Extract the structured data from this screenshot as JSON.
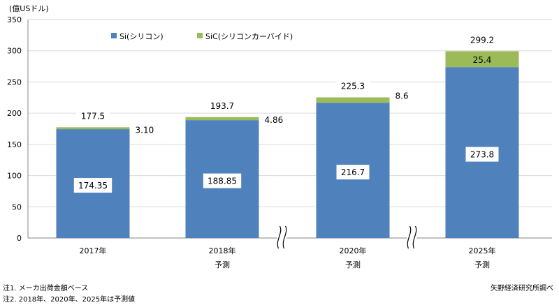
{
  "chart_data": {
    "type": "bar",
    "stacked": true,
    "unit_label": "(億USドル)",
    "y_ticks": [
      "0",
      "50",
      "100",
      "150",
      "200",
      "250",
      "300",
      "350"
    ],
    "ylim": [
      0,
      350
    ],
    "grid": true,
    "legend_position": "top-center",
    "categories": [
      "2017年",
      "2018年",
      "2020年",
      "2025年"
    ],
    "category_sublabels": [
      "",
      "予測",
      "予測",
      "予測"
    ],
    "axis_breaks_between": [
      [
        1,
        2
      ],
      [
        2,
        3
      ]
    ],
    "series": [
      {
        "name": "Si(シリコン)",
        "color": "#4f81bd",
        "values": [
          174.35,
          188.85,
          216.7,
          273.8
        ],
        "labels": [
          "174.35",
          "188.85",
          "216.7",
          "273.8"
        ]
      },
      {
        "name": "SiC(シリコンカーバイド)",
        "color": "#9bbb59",
        "values": [
          3.1,
          4.86,
          8.6,
          25.4
        ],
        "labels": [
          "3.10",
          "4.86",
          "8.6",
          "25.4"
        ]
      }
    ],
    "totals": [
      177.5,
      193.7,
      225.3,
      299.2
    ],
    "total_labels": [
      "177.5",
      "193.7",
      "225.3",
      "299.2"
    ]
  },
  "notes": {
    "note1": "注1. メーカ出荷金額ベース",
    "note2": "注2. 2018年、2020年、2025年は予測値",
    "source": "矢野経済研究所調べ"
  }
}
